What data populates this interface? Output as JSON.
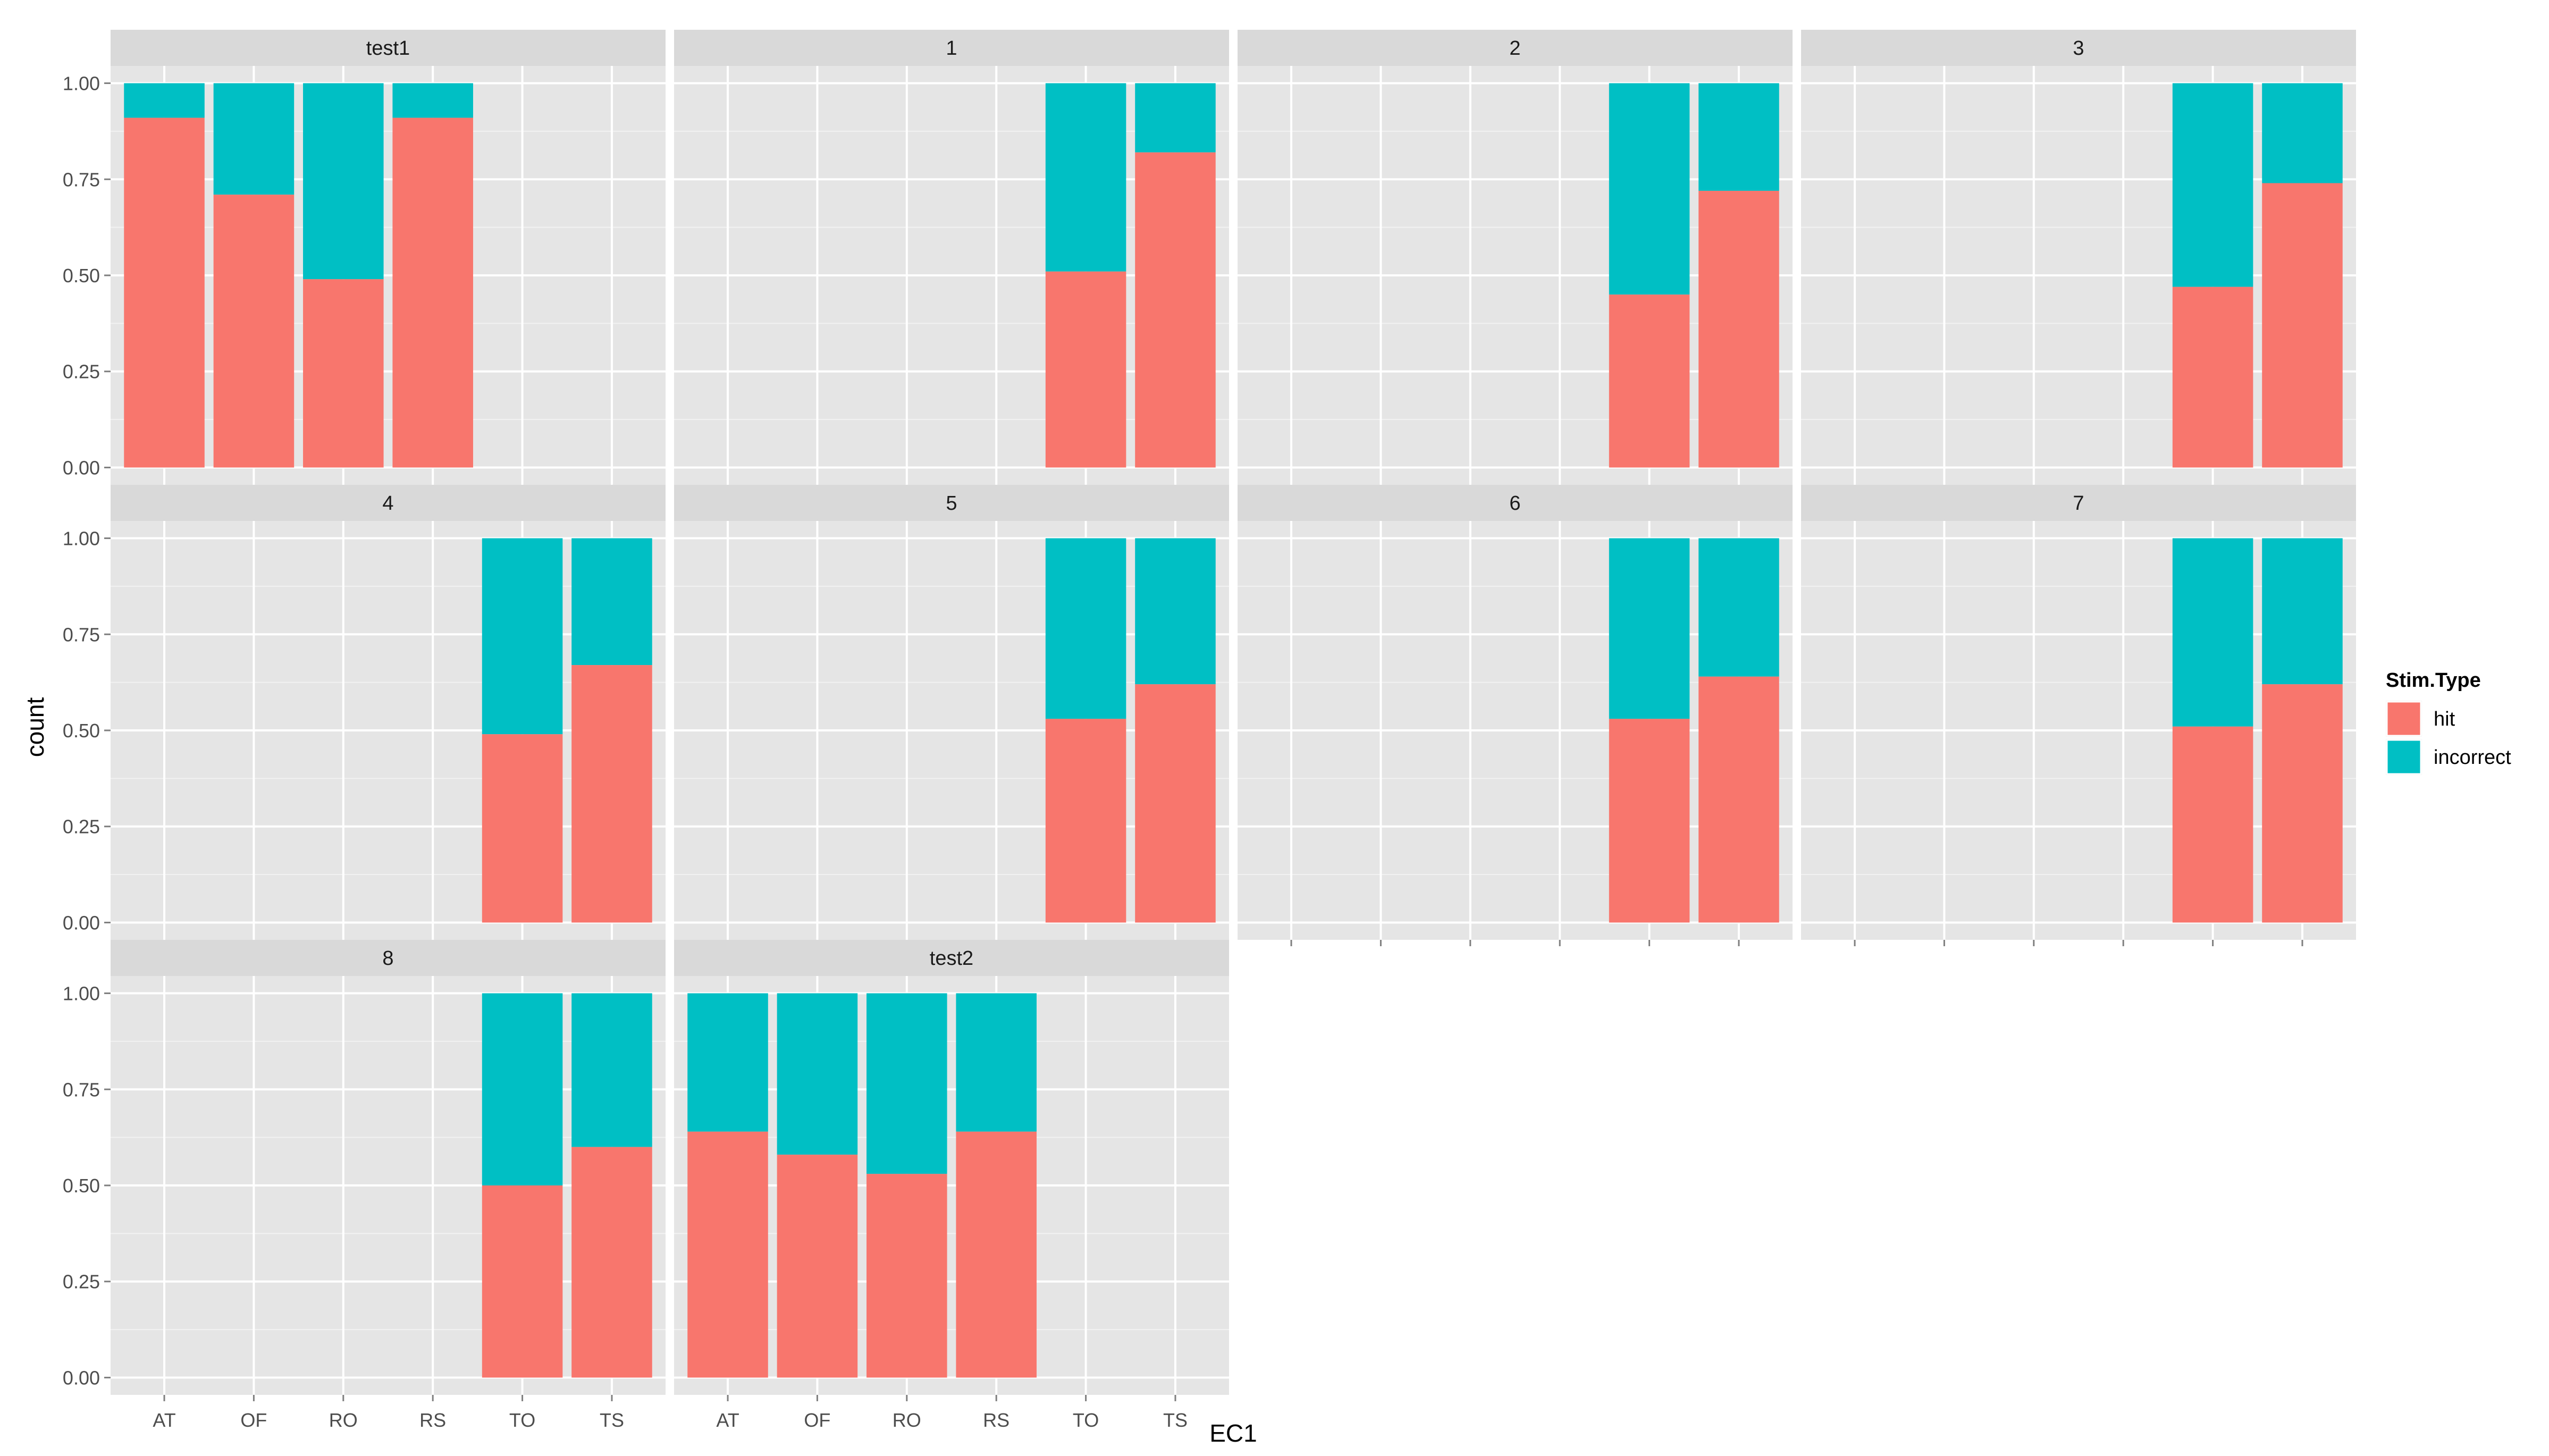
{
  "chart_data": {
    "type": "bar",
    "stacked": true,
    "facet_layout": "wrap 4 columns",
    "xlabel": "EC1",
    "ylabel": "count",
    "ylim": [
      0,
      1
    ],
    "yticks": [
      "0.00",
      "0.25",
      "0.50",
      "0.75",
      "1.00"
    ],
    "grid": true,
    "categories": [
      "AT",
      "OF",
      "RO",
      "RS",
      "TO",
      "TS"
    ],
    "legend": {
      "title": "Stim.Type",
      "position": "right",
      "entries": [
        {
          "name": "hit",
          "color": "#F8766D"
        },
        {
          "name": "incorrect",
          "color": "#00BFC4"
        }
      ]
    },
    "facets": [
      {
        "label": "test1",
        "hit": [
          0.91,
          0.71,
          0.49,
          0.91,
          null,
          null
        ]
      },
      {
        "label": "1",
        "hit": [
          null,
          null,
          null,
          null,
          0.51,
          0.82
        ]
      },
      {
        "label": "2",
        "hit": [
          null,
          null,
          null,
          null,
          0.45,
          0.72
        ]
      },
      {
        "label": "3",
        "hit": [
          null,
          null,
          null,
          null,
          0.47,
          0.74
        ]
      },
      {
        "label": "4",
        "hit": [
          null,
          null,
          null,
          null,
          0.49,
          0.67
        ]
      },
      {
        "label": "5",
        "hit": [
          null,
          null,
          null,
          null,
          0.53,
          0.62
        ]
      },
      {
        "label": "6",
        "hit": [
          null,
          null,
          null,
          null,
          0.53,
          0.64
        ]
      },
      {
        "label": "7",
        "hit": [
          null,
          null,
          null,
          null,
          0.51,
          0.62
        ]
      },
      {
        "label": "8",
        "hit": [
          null,
          null,
          null,
          null,
          0.5,
          0.6
        ]
      },
      {
        "label": "test2",
        "hit": [
          0.64,
          0.58,
          0.53,
          0.64,
          null,
          null
        ]
      }
    ]
  }
}
